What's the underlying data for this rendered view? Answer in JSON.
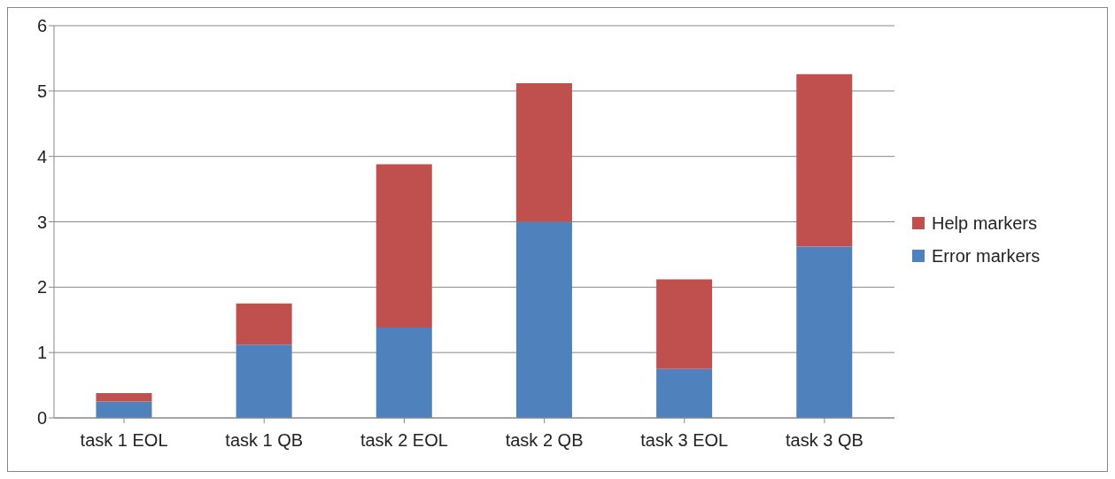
{
  "chart_data": {
    "type": "bar",
    "stacked": true,
    "categories": [
      "task 1 EOL",
      "task 1 QB",
      "task 2 EOL",
      "task 2 QB",
      "task 3 EOL",
      "task 3 QB"
    ],
    "series": [
      {
        "name": "Error markers",
        "color": "#4f81bd",
        "values": [
          0.25,
          1.12,
          1.38,
          3.0,
          0.75,
          2.62
        ]
      },
      {
        "name": "Help markers",
        "color": "#c0504d",
        "values": [
          0.13,
          0.63,
          2.5,
          2.12,
          1.37,
          2.64
        ]
      }
    ],
    "ylim": [
      0,
      6
    ],
    "yticks": [
      0,
      1,
      2,
      3,
      4,
      5,
      6
    ],
    "grid": "y",
    "legend": "right"
  }
}
